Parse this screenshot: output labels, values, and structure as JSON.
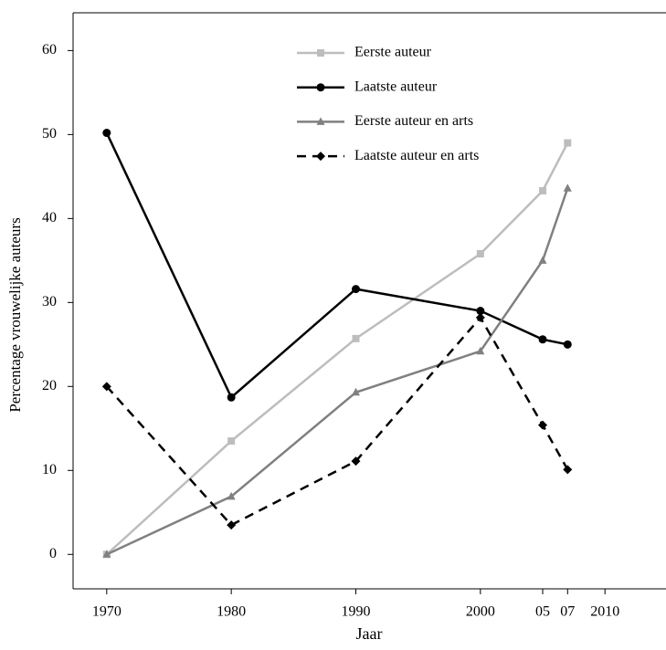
{
  "chart_data": {
    "type": "line",
    "x_label": "Jaar",
    "y_label": "Percentage vrouwelijke auteurs",
    "x": [
      1970,
      1980,
      1990,
      2000,
      2005,
      2007
    ],
    "series": [
      {
        "name": "Eerste auteur",
        "color": "#bdbdbd",
        "marker": "square",
        "line_style": "solid",
        "values": [
          0,
          13.5,
          25.7,
          35.8,
          43.3,
          49.0
        ]
      },
      {
        "name": "Laatste auteur",
        "color": "#000000",
        "marker": "circle",
        "line_style": "solid",
        "values": [
          50.2,
          18.7,
          31.6,
          29.0,
          25.6,
          25.0
        ]
      },
      {
        "name": "Eerste auteur en arts",
        "color": "#808080",
        "marker": "triangle",
        "line_style": "solid",
        "values": [
          0,
          6.9,
          19.3,
          24.2,
          35.0,
          43.6
        ]
      },
      {
        "name": "Laatste auteur en arts",
        "color": "#000000",
        "marker": "diamond",
        "line_style": "dashed",
        "values": [
          20.0,
          3.5,
          11.1,
          28.2,
          15.4,
          10.1
        ]
      }
    ],
    "xlim": [
      1967.3,
      2014.9
    ],
    "xticks": [
      1970,
      1980,
      1990,
      2000,
      {
        "value": 2005,
        "label": "05"
      },
      {
        "value": 2007,
        "label": "07"
      },
      2010
    ],
    "ylim": [
      -4.1,
      64.5
    ],
    "yticks": [
      0,
      10,
      20,
      30,
      40,
      50,
      60
    ],
    "legend": "top"
  }
}
